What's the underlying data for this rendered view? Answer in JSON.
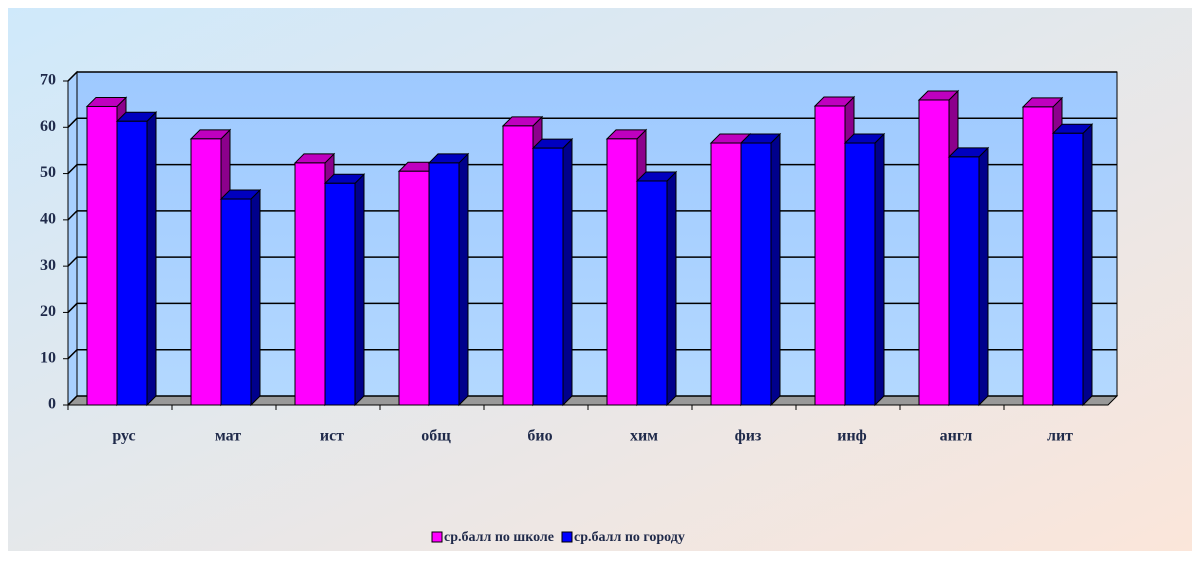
{
  "chart_data": {
    "type": "bar3d",
    "categories": [
      "рус",
      "мат",
      "ист",
      "общ",
      "био",
      "хим",
      "физ",
      "инф",
      "англ",
      "лит"
    ],
    "series": [
      {
        "name": "ср.балл по школе",
        "color": "#ff00ff",
        "values": [
          64.5,
          57.5,
          52.3,
          50.5,
          60.3,
          57.5,
          56.6,
          64.6,
          65.9,
          64.4
        ]
      },
      {
        "name": "ср.балл по городу",
        "color": "#0000ff",
        "values": [
          61.3,
          44.5,
          47.9,
          52.3,
          55.5,
          48.4,
          56.6,
          56.6,
          53.6,
          58.7
        ]
      }
    ],
    "ylim": [
      0,
      70
    ],
    "yticks": [
      0,
      10,
      20,
      30,
      40,
      50,
      60,
      70
    ],
    "grid": true,
    "legend": "bottom"
  }
}
